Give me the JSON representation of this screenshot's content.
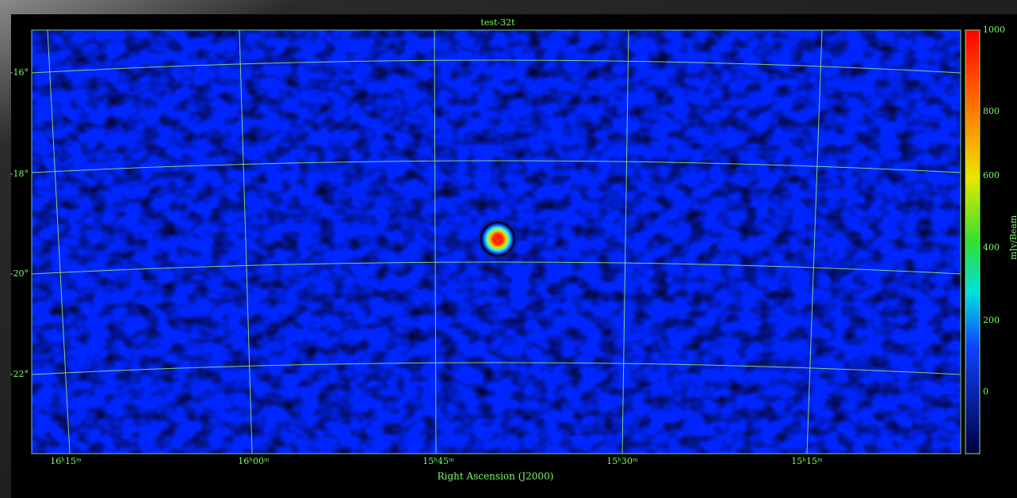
{
  "title": "test-32t",
  "x_axis": {
    "label": "Right Ascension (J2000)",
    "ticks": [
      "16ʰ15ᵐ",
      "16ʰ00ᵐ",
      "15ʰ45ᵐ",
      "15ʰ30ᵐ",
      "15ʰ15ᵐ"
    ]
  },
  "y_axis": {
    "ticks": [
      "-16°",
      "-18°",
      "-20°",
      "-22°"
    ]
  },
  "colorbar": {
    "label": "mJy/Beam",
    "ticks": [
      "1000",
      "800",
      "600",
      "400",
      "200",
      "0"
    ]
  }
}
